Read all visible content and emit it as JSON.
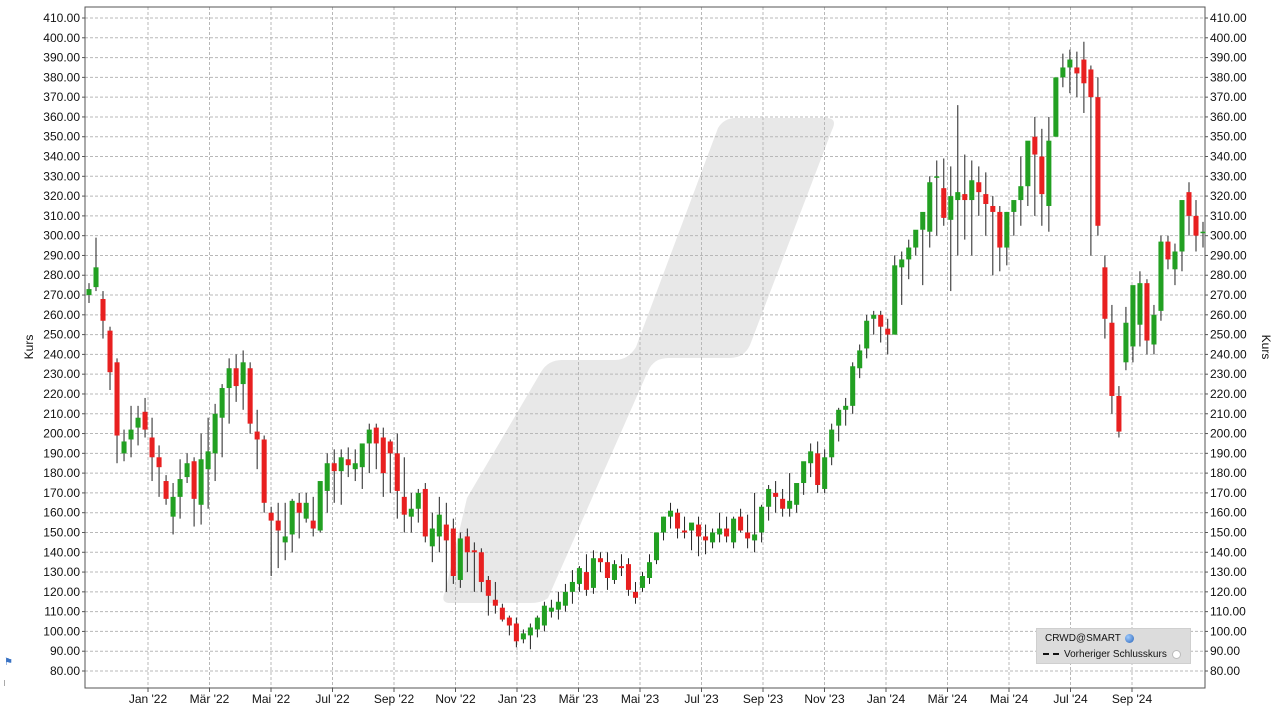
{
  "chart_data": {
    "type": "candlestick",
    "symbol": "CRWD@SMART",
    "ylabel_left": "Kurs",
    "ylabel_right": "Kurs",
    "ylim": [
      70,
      415
    ],
    "yticks": [
      80,
      90,
      100,
      110,
      120,
      130,
      140,
      150,
      160,
      170,
      180,
      190,
      200,
      210,
      220,
      230,
      240,
      250,
      260,
      270,
      280,
      290,
      300,
      310,
      320,
      330,
      340,
      350,
      360,
      370,
      380,
      390,
      400,
      410
    ],
    "x_labels": [
      "Jan '22",
      "Mär '22",
      "Mai '22",
      "Jul '22",
      "Sep '22",
      "Nov '22",
      "Jan '23",
      "Mär '23",
      "Mai '23",
      "Jul '23",
      "Sep '23",
      "Nov '23",
      "Jan '24",
      "Mär '24",
      "Mai '24",
      "Jul '24",
      "Sep '24"
    ],
    "grid": true,
    "legend": {
      "position": "bottom-right",
      "entries": [
        "CRWD@SMART",
        "Vorheriger Schlusskurs"
      ]
    },
    "colors": {
      "up": "#22a022",
      "down": "#e82020",
      "grid": "#b8b8b8",
      "watermark": "#e6e6e6"
    },
    "candles_weekly_ohlc": [
      [
        270,
        276,
        266,
        273
      ],
      [
        274,
        299,
        272,
        284
      ],
      [
        268,
        272,
        248,
        257
      ],
      [
        252,
        254,
        222,
        231
      ],
      [
        236,
        238,
        185,
        199
      ],
      [
        190,
        202,
        186,
        196
      ],
      [
        197,
        214,
        188,
        202
      ],
      [
        203,
        214,
        194,
        208
      ],
      [
        211,
        218,
        198,
        202
      ],
      [
        198,
        208,
        176,
        188
      ],
      [
        188,
        194,
        168,
        183
      ],
      [
        176,
        179,
        164,
        167
      ],
      [
        158,
        175,
        149,
        168
      ],
      [
        168,
        187,
        157,
        177
      ],
      [
        178,
        190,
        175,
        185
      ],
      [
        186,
        188,
        153,
        167
      ],
      [
        164,
        200,
        154,
        187
      ],
      [
        182,
        208,
        162,
        191
      ],
      [
        190,
        215,
        176,
        210
      ],
      [
        208,
        225,
        188,
        223
      ],
      [
        223,
        238,
        205,
        233
      ],
      [
        233,
        240,
        216,
        224
      ],
      [
        225,
        242,
        212,
        236
      ],
      [
        233,
        236,
        200,
        205
      ],
      [
        201,
        212,
        182,
        197
      ],
      [
        197,
        199,
        160,
        165
      ],
      [
        160,
        163,
        128,
        156
      ],
      [
        156,
        165,
        132,
        151
      ],
      [
        145,
        165,
        136,
        148
      ],
      [
        149,
        167,
        140,
        166
      ],
      [
        165,
        170,
        147,
        160
      ],
      [
        157,
        170,
        155,
        165
      ],
      [
        156,
        168,
        148,
        152
      ],
      [
        151,
        171,
        150,
        176
      ],
      [
        171,
        190,
        160,
        185
      ],
      [
        185,
        192,
        165,
        181
      ],
      [
        181,
        192,
        164,
        188
      ],
      [
        187,
        193,
        178,
        184
      ],
      [
        182,
        192,
        176,
        185
      ],
      [
        183,
        194,
        172,
        195
      ],
      [
        195,
        205,
        180,
        202
      ],
      [
        203,
        205,
        182,
        195
      ],
      [
        198,
        203,
        168,
        180
      ],
      [
        196,
        197,
        170,
        190
      ],
      [
        190,
        200,
        157,
        171
      ],
      [
        168,
        188,
        150,
        159
      ],
      [
        158,
        170,
        150,
        162
      ],
      [
        162,
        172,
        155,
        170
      ],
      [
        172,
        175,
        145,
        148
      ],
      [
        143,
        160,
        135,
        152
      ],
      [
        148,
        168,
        140,
        159
      ],
      [
        154,
        165,
        120,
        146
      ],
      [
        152,
        157,
        124,
        128
      ],
      [
        126,
        150,
        122,
        147
      ],
      [
        148,
        152,
        130,
        140
      ],
      [
        141,
        145,
        120,
        140
      ],
      [
        140,
        142,
        120,
        125
      ],
      [
        126,
        128,
        108,
        118
      ],
      [
        116,
        125,
        109,
        113
      ],
      [
        112,
        114,
        105,
        106
      ],
      [
        107,
        108,
        98,
        103
      ],
      [
        104,
        107,
        92,
        95
      ],
      [
        96,
        101,
        94,
        99
      ],
      [
        98,
        104,
        91,
        102
      ],
      [
        101,
        108,
        97,
        107
      ],
      [
        103,
        115,
        100,
        113
      ],
      [
        110,
        116,
        107,
        112
      ],
      [
        111,
        120,
        106,
        115
      ],
      [
        113,
        124,
        110,
        120
      ],
      [
        120,
        131,
        114,
        125
      ],
      [
        124,
        133,
        120,
        132
      ],
      [
        130,
        139,
        118,
        121
      ],
      [
        122,
        141,
        119,
        137
      ],
      [
        137,
        140,
        130,
        135
      ],
      [
        135,
        140,
        121,
        127
      ],
      [
        126,
        136,
        124,
        134
      ],
      [
        133,
        139,
        128,
        132
      ],
      [
        134,
        137,
        118,
        121
      ],
      [
        120,
        125,
        114,
        117
      ],
      [
        122,
        130,
        120,
        128
      ],
      [
        127,
        139,
        124,
        135
      ],
      [
        136,
        148,
        134,
        150
      ],
      [
        150,
        158,
        146,
        158
      ],
      [
        158,
        165,
        152,
        161
      ],
      [
        160,
        162,
        147,
        152
      ],
      [
        151,
        158,
        147,
        150
      ],
      [
        151,
        154,
        141,
        155
      ],
      [
        154,
        158,
        138,
        148
      ],
      [
        148,
        154,
        139,
        146
      ],
      [
        145,
        152,
        142,
        150
      ],
      [
        149,
        160,
        145,
        152
      ],
      [
        152,
        158,
        145,
        148
      ],
      [
        145,
        158,
        142,
        157
      ],
      [
        158,
        162,
        150,
        151
      ],
      [
        150,
        159,
        142,
        147
      ],
      [
        146,
        170,
        140,
        149
      ],
      [
        150,
        164,
        145,
        163
      ],
      [
        163,
        174,
        156,
        172
      ],
      [
        170,
        176,
        160,
        168
      ],
      [
        167,
        172,
        158,
        162
      ],
      [
        162,
        180,
        158,
        166
      ],
      [
        164,
        174,
        160,
        175
      ],
      [
        175,
        185,
        169,
        186
      ],
      [
        185,
        195,
        178,
        191
      ],
      [
        190,
        196,
        170,
        174
      ],
      [
        172,
        192,
        170,
        188
      ],
      [
        188,
        205,
        184,
        202
      ],
      [
        204,
        213,
        196,
        212
      ],
      [
        212,
        218,
        204,
        214
      ],
      [
        214,
        236,
        210,
        234
      ],
      [
        233,
        245,
        228,
        242
      ],
      [
        243,
        260,
        238,
        257
      ],
      [
        258,
        262,
        250,
        260
      ],
      [
        260,
        262,
        246,
        254
      ],
      [
        253,
        258,
        240,
        250
      ],
      [
        250,
        290,
        250,
        285
      ],
      [
        284,
        292,
        265,
        288
      ],
      [
        288,
        298,
        278,
        294
      ],
      [
        294,
        301,
        290,
        303
      ],
      [
        303,
        306,
        275,
        312
      ],
      [
        302,
        330,
        294,
        327
      ],
      [
        330,
        338,
        300,
        330
      ],
      [
        324,
        339,
        305,
        309
      ],
      [
        308,
        335,
        272,
        320
      ],
      [
        318,
        366,
        290,
        322
      ],
      [
        321,
        341,
        298,
        318
      ],
      [
        318,
        338,
        290,
        328
      ],
      [
        327,
        335,
        310,
        322
      ],
      [
        321,
        332,
        300,
        316
      ],
      [
        315,
        320,
        280,
        312
      ],
      [
        312,
        315,
        282,
        294
      ],
      [
        294,
        312,
        285,
        312
      ],
      [
        312,
        316,
        300,
        318
      ],
      [
        318,
        340,
        305,
        325
      ],
      [
        325,
        342,
        315,
        348
      ],
      [
        350,
        360,
        310,
        341
      ],
      [
        340,
        354,
        305,
        321
      ],
      [
        315,
        360,
        302,
        348
      ],
      [
        350,
        376,
        368,
        380
      ],
      [
        380,
        392,
        375,
        385
      ],
      [
        385,
        394,
        372,
        389
      ],
      [
        385,
        393,
        370,
        382
      ],
      [
        389,
        398,
        362,
        377
      ],
      [
        384,
        386,
        290,
        370
      ],
      [
        370,
        380,
        300,
        305
      ],
      [
        284,
        290,
        248,
        258
      ],
      [
        256,
        265,
        210,
        219
      ],
      [
        219,
        224,
        198,
        201
      ],
      [
        236,
        264,
        232,
        256
      ],
      [
        244,
        270,
        236,
        275
      ],
      [
        255,
        282,
        244,
        276
      ],
      [
        276,
        278,
        240,
        247
      ],
      [
        245,
        265,
        240,
        260
      ],
      [
        262,
        300,
        257,
        297
      ],
      [
        297,
        300,
        283,
        288
      ],
      [
        283,
        296,
        275,
        292
      ],
      [
        292,
        306,
        282,
        318
      ],
      [
        322,
        327,
        300,
        310
      ],
      [
        310,
        318,
        292,
        300
      ],
      [
        302,
        307,
        294,
        302
      ]
    ]
  }
}
